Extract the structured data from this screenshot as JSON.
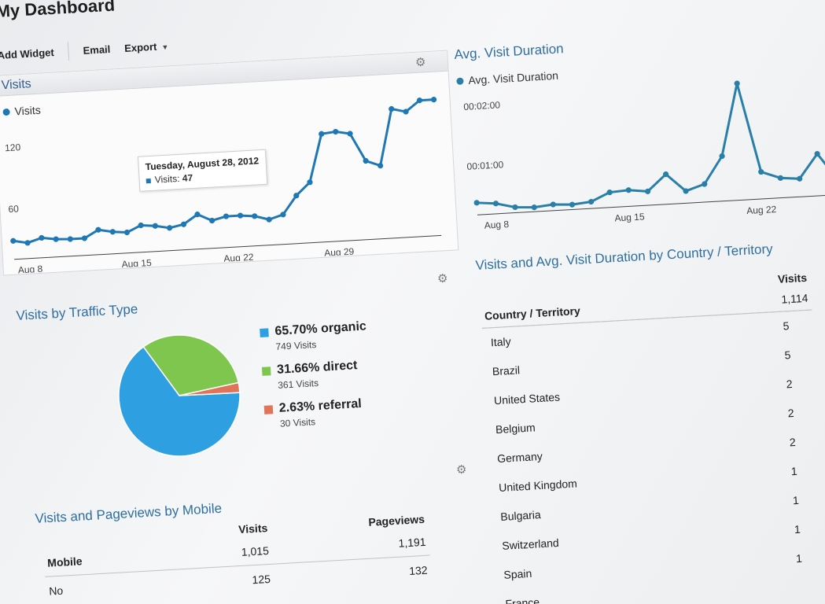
{
  "page_title": "My Dashboard",
  "toolbar": {
    "add_widget": "Add Widget",
    "email": "Email",
    "export": "Export"
  },
  "visits_widget": {
    "header": "Visits",
    "legend": "Visits",
    "tooltip": {
      "date": "Tuesday, August 28, 2012",
      "label": "Visits:",
      "value": "47"
    }
  },
  "duration_widget": {
    "title": "Avg. Visit Duration",
    "legend": "Avg. Visit Duration"
  },
  "traffic_widget": {
    "title": "Visits by Traffic Type",
    "entries": [
      {
        "label": "65.70% organic",
        "sub": "749 Visits",
        "color": "#2e9fe0"
      },
      {
        "label": "31.66% direct",
        "sub": "361 Visits",
        "color": "#7fc64f"
      },
      {
        "label": "2.63% referral",
        "sub": "30 Visits",
        "color": "#e0745a"
      }
    ]
  },
  "mobile_widget": {
    "title": "Visits and Pageviews by Mobile",
    "col_mobile": "Mobile",
    "col_visits": "Visits",
    "col_pageviews": "Pageviews",
    "totals": {
      "visits": "1,015",
      "pageviews": "1,191"
    },
    "rows": [
      {
        "name": "No",
        "visits": "125",
        "pageviews": "132"
      }
    ]
  },
  "country_widget": {
    "title": "Visits and Avg. Visit Duration by Country / Territory",
    "col_country": "Country / Territory",
    "col_visits": "Visits",
    "total_visits": "1,114",
    "rows": [
      {
        "country": "Italy",
        "visits": "5"
      },
      {
        "country": "Brazil",
        "visits": "5"
      },
      {
        "country": "United States",
        "visits": "2"
      },
      {
        "country": "Belgium",
        "visits": "2"
      },
      {
        "country": "Germany",
        "visits": "2"
      },
      {
        "country": "United Kingdom",
        "visits": "1"
      },
      {
        "country": "Bulgaria",
        "visits": "1"
      },
      {
        "country": "Switzerland",
        "visits": "1"
      },
      {
        "country": "Spain",
        "visits": "1"
      },
      {
        "country": "France",
        "visits": ""
      }
    ]
  },
  "chart_data": [
    {
      "type": "line",
      "series": [
        {
          "name": "Visits",
          "color": "#1f77b4",
          "values": [
            22,
            18,
            24,
            21,
            20,
            20,
            31,
            27,
            25,
            34,
            32,
            28,
            32,
            45,
            35,
            40,
            40,
            38,
            32,
            38,
            64,
            82,
            150,
            152,
            148,
            108,
            100,
            180,
            175,
            190,
            190
          ]
        }
      ],
      "x_tick_labels": [
        "Aug 8",
        "Aug 15",
        "Aug 22",
        "Aug 29"
      ],
      "y_tick_labels": [
        "120",
        "60"
      ]
    },
    {
      "type": "line",
      "series": [
        {
          "name": "Avg. Visit Duration",
          "color": "#2a7fa8",
          "values": [
            15,
            12,
            4,
            2,
            5,
            3,
            6,
            20,
            22,
            18,
            45,
            15,
            25,
            70,
            190,
            40,
            28,
            25,
            65,
            20
          ]
        }
      ],
      "x_tick_labels": [
        "Aug 8",
        "Aug 15",
        "Aug 22"
      ],
      "y_tick_labels": [
        "00:02:00",
        "00:01:00"
      ]
    },
    {
      "type": "pie",
      "labels": [
        "organic",
        "direct",
        "referral"
      ],
      "values": [
        65.7,
        31.66,
        2.63
      ],
      "colors": [
        "#2e9fe0",
        "#7fc64f",
        "#e0745a"
      ]
    }
  ]
}
